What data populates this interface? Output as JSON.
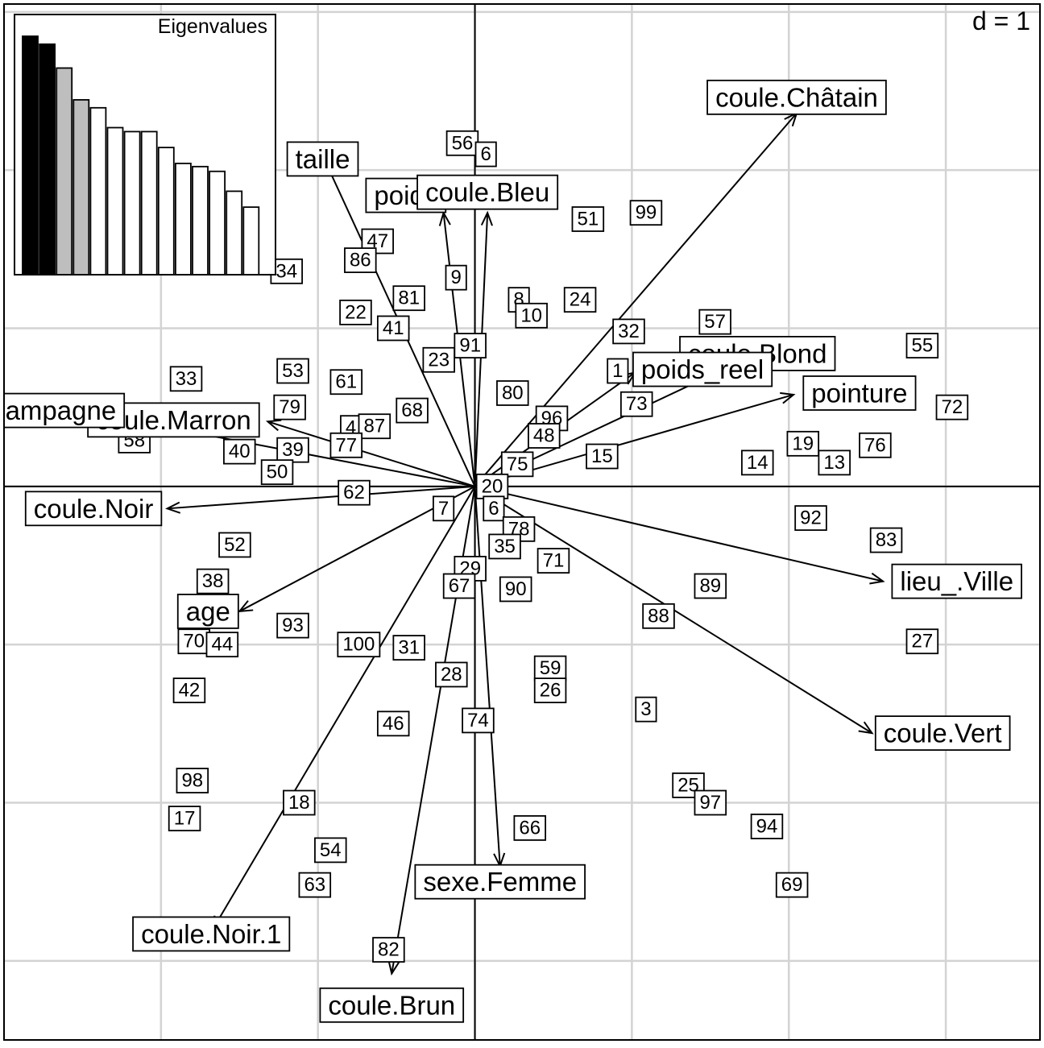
{
  "chart_data": {
    "type": "scatter",
    "scale_label": "d = 1",
    "grid": true,
    "xlim": [
      -3.0,
      3.6
    ],
    "ylim": [
      -3.5,
      3.05
    ],
    "point_labels": [
      {
        "label": "56",
        "x": -0.08,
        "y": 2.17
      },
      {
        "label": "6",
        "x": 0.07,
        "y": 2.1
      },
      {
        "label": "47",
        "x": -0.62,
        "y": 1.55
      },
      {
        "label": "86",
        "x": -0.73,
        "y": 1.43
      },
      {
        "label": "34",
        "x": -1.2,
        "y": 1.36
      },
      {
        "label": "9",
        "x": -0.12,
        "y": 1.32
      },
      {
        "label": "81",
        "x": -0.42,
        "y": 1.19
      },
      {
        "label": "8",
        "x": 0.28,
        "y": 1.18
      },
      {
        "label": "10",
        "x": 0.36,
        "y": 1.08
      },
      {
        "label": "24",
        "x": 0.67,
        "y": 1.18
      },
      {
        "label": "51",
        "x": 0.72,
        "y": 1.69
      },
      {
        "label": "99",
        "x": 1.09,
        "y": 1.73
      },
      {
        "label": "22",
        "x": -0.76,
        "y": 1.1
      },
      {
        "label": "41",
        "x": -0.52,
        "y": 1.0
      },
      {
        "label": "32",
        "x": 0.98,
        "y": 0.98
      },
      {
        "label": "57",
        "x": 1.53,
        "y": 1.04
      },
      {
        "label": "55",
        "x": 2.85,
        "y": 0.89
      },
      {
        "label": "91",
        "x": -0.03,
        "y": 0.89
      },
      {
        "label": "23",
        "x": -0.23,
        "y": 0.8
      },
      {
        "label": "1",
        "x": 0.91,
        "y": 0.73
      },
      {
        "label": "33",
        "x": -1.84,
        "y": 0.68
      },
      {
        "label": "53",
        "x": -1.16,
        "y": 0.73
      },
      {
        "label": "61",
        "x": -0.82,
        "y": 0.66
      },
      {
        "label": "80",
        "x": 0.24,
        "y": 0.59
      },
      {
        "label": "73",
        "x": 1.03,
        "y": 0.52
      },
      {
        "label": "72",
        "x": 3.04,
        "y": 0.5
      },
      {
        "label": "79",
        "x": -1.18,
        "y": 0.5
      },
      {
        "label": "68",
        "x": -0.4,
        "y": 0.48
      },
      {
        "label": "96",
        "x": 0.49,
        "y": 0.43
      },
      {
        "label": "4",
        "x": -0.79,
        "y": 0.37
      },
      {
        "label": "87",
        "x": -0.64,
        "y": 0.38
      },
      {
        "label": "48",
        "x": 0.44,
        "y": 0.32
      },
      {
        "label": "58",
        "x": -2.17,
        "y": 0.29
      },
      {
        "label": "77",
        "x": -0.82,
        "y": 0.26
      },
      {
        "label": "40",
        "x": -1.5,
        "y": 0.22
      },
      {
        "label": "39",
        "x": -1.16,
        "y": 0.23
      },
      {
        "label": "15",
        "x": 0.81,
        "y": 0.19
      },
      {
        "label": "76",
        "x": 2.55,
        "y": 0.26
      },
      {
        "label": "19",
        "x": 2.09,
        "y": 0.27
      },
      {
        "label": "14",
        "x": 1.8,
        "y": 0.15
      },
      {
        "label": "13",
        "x": 2.29,
        "y": 0.15
      },
      {
        "label": "75",
        "x": 0.27,
        "y": 0.14
      },
      {
        "label": "50",
        "x": -1.26,
        "y": 0.09
      },
      {
        "label": "20",
        "x": 0.11,
        "y": 0.0
      },
      {
        "label": "62",
        "x": -0.77,
        "y": -0.04
      },
      {
        "label": "7",
        "x": -0.2,
        "y": -0.14
      },
      {
        "label": "6",
        "x": 0.12,
        "y": -0.14
      },
      {
        "label": "92",
        "x": 2.14,
        "y": -0.2
      },
      {
        "label": "78",
        "x": 0.28,
        "y": -0.27
      },
      {
        "label": "83",
        "x": 2.62,
        "y": -0.34
      },
      {
        "label": "52",
        "x": -1.53,
        "y": -0.37
      },
      {
        "label": "35",
        "x": 0.19,
        "y": -0.38
      },
      {
        "label": "71",
        "x": 0.5,
        "y": -0.47
      },
      {
        "label": "29",
        "x": -0.03,
        "y": -0.52
      },
      {
        "label": "38",
        "x": -1.67,
        "y": -0.6
      },
      {
        "label": "67",
        "x": -0.1,
        "y": -0.63
      },
      {
        "label": "90",
        "x": 0.26,
        "y": -0.65
      },
      {
        "label": "89",
        "x": 1.5,
        "y": -0.63
      },
      {
        "label": "88",
        "x": 1.17,
        "y": -0.82
      },
      {
        "label": "93",
        "x": -1.16,
        "y": -0.88
      },
      {
        "label": "70",
        "x": -1.79,
        "y": -0.98
      },
      {
        "label": "44",
        "x": -1.61,
        "y": -1.0
      },
      {
        "label": "100",
        "x": -0.74,
        "y": -1.0
      },
      {
        "label": "31",
        "x": -0.42,
        "y": -1.02
      },
      {
        "label": "27",
        "x": 2.85,
        "y": -0.98
      },
      {
        "label": "59",
        "x": 0.48,
        "y": -1.15
      },
      {
        "label": "26",
        "x": 0.48,
        "y": -1.29
      },
      {
        "label": "28",
        "x": -0.15,
        "y": -1.19
      },
      {
        "label": "42",
        "x": -1.82,
        "y": -1.29
      },
      {
        "label": "46",
        "x": -0.52,
        "y": -1.5
      },
      {
        "label": "3",
        "x": 1.09,
        "y": -1.41
      },
      {
        "label": "74",
        "x": 0.02,
        "y": -1.48
      },
      {
        "label": "25",
        "x": 1.36,
        "y": -1.89
      },
      {
        "label": "97",
        "x": 1.5,
        "y": -2.0
      },
      {
        "label": "98",
        "x": -1.8,
        "y": -1.86
      },
      {
        "label": "18",
        "x": -1.12,
        "y": -2.0
      },
      {
        "label": "17",
        "x": -1.85,
        "y": -2.1
      },
      {
        "label": "94",
        "x": 1.86,
        "y": -2.15
      },
      {
        "label": "66",
        "x": 0.35,
        "y": -2.16
      },
      {
        "label": "54",
        "x": -0.92,
        "y": -2.3
      },
      {
        "label": "63",
        "x": -1.02,
        "y": -2.52
      },
      {
        "label": "69",
        "x": 2.02,
        "y": -2.52
      },
      {
        "label": "82",
        "x": -0.55,
        "y": -2.93
      }
    ],
    "arrows": [
      {
        "label": "coule.Châtain",
        "x": 2.05,
        "y": 2.36,
        "label_x": 2.05,
        "label_y": 2.46
      },
      {
        "label": "taille",
        "x": -0.96,
        "y": 2.07,
        "label_x": -0.97,
        "label_y": 2.07
      },
      {
        "label": "poids",
        "x": -0.2,
        "y": 1.73,
        "label_x": -0.44,
        "label_y": 1.84
      },
      {
        "label": "coule.Bleu",
        "x": 0.08,
        "y": 1.73,
        "label_x": 0.08,
        "label_y": 1.86
      },
      {
        "label": "coule.Blond",
        "x": 1.8,
        "y": 0.84,
        "label_x": 1.8,
        "label_y": 0.84
      },
      {
        "label": "poids_reel",
        "x": 1.02,
        "y": 0.72,
        "label_x": 1.45,
        "label_y": 0.74
      },
      {
        "label": "pointure",
        "x": 2.03,
        "y": 0.58,
        "label_x": 2.45,
        "label_y": 0.59
      },
      {
        "label": "coule.Marron",
        "x": -1.32,
        "y": 0.41,
        "label_x": -1.92,
        "label_y": 0.42
      },
      {
        "label": "Campagne",
        "x": -2.52,
        "y": 0.48,
        "label_x": -2.7,
        "label_y": 0.48
      },
      {
        "label": "coule.Noir",
        "x": -1.96,
        "y": -0.14,
        "label_x": -2.43,
        "label_y": -0.14
      },
      {
        "label": "age",
        "x": -1.5,
        "y": -0.79,
        "label_x": -1.7,
        "label_y": -0.79
      },
      {
        "label": "lieu_.Ville",
        "x": 2.6,
        "y": -0.6,
        "label_x": 3.07,
        "label_y": -0.6
      },
      {
        "label": "coule.Vert",
        "x": 2.53,
        "y": -1.56,
        "label_x": 2.98,
        "label_y": -1.56
      },
      {
        "label": "coule.Noir.1",
        "x": -1.67,
        "y": -2.8,
        "label_x": -1.68,
        "label_y": -2.83
      },
      {
        "label": "sexe.Femme",
        "x": 0.16,
        "y": -2.4,
        "label_x": 0.16,
        "label_y": -2.5
      },
      {
        "label": "coule.Brun",
        "x": -0.53,
        "y": -3.08,
        "label_x": -0.53,
        "label_y": -3.28
      }
    ],
    "inset": {
      "title": "Eigenvalues",
      "values": [
        3.0,
        2.9,
        2.6,
        2.2,
        2.1,
        1.85,
        1.8,
        1.8,
        1.6,
        1.4,
        1.36,
        1.3,
        1.05,
        0.85
      ],
      "fills": [
        "#000000",
        "#000000",
        "#bebebe",
        "#bebebe",
        "#ffffff",
        "#ffffff",
        "#ffffff",
        "#ffffff",
        "#ffffff",
        "#ffffff",
        "#ffffff",
        "#ffffff",
        "#ffffff",
        "#ffffff"
      ]
    }
  }
}
